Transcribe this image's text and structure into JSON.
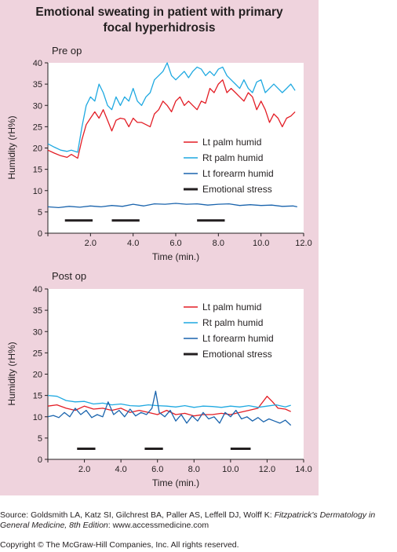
{
  "title_line1": "Emotional sweating in patient with primary",
  "title_line2": "focal hyperhidrosis",
  "source_prefix": "Source: Goldsmith LA, Katz SI, Gilchrest BA, Paller AS, Leffell DJ, Wolff K: ",
  "source_italic": "Fitzpatrick's Dermatology in General Medicine, 8th Edition",
  "source_suffix": ": www.accessmedicine.com",
  "copyright": "Copyright © The McGraw-Hill Companies, Inc. All rights reserved.",
  "colors": {
    "lt_palm": "#e31d25",
    "rt_palm": "#1fa9e1",
    "lt_forearm": "#1a64ad",
    "stress": "#231f20",
    "background": "#efd3dd"
  },
  "chart_data": [
    {
      "type": "line",
      "panel_label": "Pre op",
      "xlabel": "Time (min.)",
      "ylabel": "Humidity (rH%)",
      "xlim": [
        0,
        12
      ],
      "ylim": [
        0,
        40
      ],
      "xticks": [
        "2.0",
        "4.0",
        "6.0",
        "8.0",
        "10.0",
        "12.0"
      ],
      "yticks": [
        "0",
        "5",
        "10",
        "15",
        "20",
        "25",
        "30",
        "35",
        "40"
      ],
      "legend": [
        "Lt palm humid",
        "Rt palm humid",
        "Lt forearm humid",
        "Emotional stress"
      ],
      "legend_position": "right",
      "series": [
        {
          "name": "Lt palm humid",
          "color": "#e31d25",
          "x": [
            0,
            0.3,
            0.6,
            0.9,
            1.1,
            1.4,
            1.6,
            1.8,
            2.0,
            2.2,
            2.4,
            2.6,
            2.8,
            3.0,
            3.2,
            3.4,
            3.6,
            3.8,
            4.0,
            4.2,
            4.4,
            4.6,
            4.8,
            5.0,
            5.2,
            5.4,
            5.6,
            5.8,
            6.0,
            6.2,
            6.4,
            6.6,
            6.8,
            7.0,
            7.2,
            7.4,
            7.6,
            7.8,
            8.0,
            8.2,
            8.4,
            8.6,
            8.8,
            9.0,
            9.2,
            9.4,
            9.6,
            9.8,
            10.0,
            10.2,
            10.4,
            10.6,
            10.8,
            11.0,
            11.2,
            11.4,
            11.6
          ],
          "y": [
            19.5,
            18.8,
            18.2,
            17.8,
            18.5,
            17.6,
            22,
            25.5,
            27,
            28.5,
            27,
            29,
            26.5,
            24,
            26.5,
            27,
            26.8,
            25,
            27,
            26,
            26,
            25.5,
            25,
            28,
            29,
            31,
            30,
            28.5,
            31,
            32,
            30,
            31,
            30,
            29,
            31,
            30.5,
            34,
            33,
            35,
            36,
            33,
            34,
            33,
            32,
            31,
            33,
            32,
            29,
            31,
            29,
            26,
            28,
            27,
            25,
            27,
            27.5,
            28.5
          ]
        },
        {
          "name": "Rt palm humid",
          "color": "#1fa9e1",
          "x": [
            0,
            0.3,
            0.6,
            0.9,
            1.1,
            1.4,
            1.6,
            1.8,
            2.0,
            2.2,
            2.4,
            2.6,
            2.8,
            3.0,
            3.2,
            3.4,
            3.6,
            3.8,
            4.0,
            4.2,
            4.4,
            4.6,
            4.8,
            5.0,
            5.2,
            5.4,
            5.6,
            5.8,
            6.0,
            6.2,
            6.4,
            6.6,
            6.8,
            7.0,
            7.2,
            7.4,
            7.6,
            7.8,
            8.0,
            8.2,
            8.4,
            8.6,
            8.8,
            9.0,
            9.2,
            9.4,
            9.6,
            9.8,
            10.0,
            10.2,
            10.4,
            10.6,
            10.8,
            11.0,
            11.2,
            11.4,
            11.6
          ],
          "y": [
            21,
            20.2,
            19.5,
            19.2,
            19.5,
            19,
            25,
            30,
            32,
            31,
            35,
            33,
            30,
            29,
            32,
            30,
            32,
            31,
            34,
            31,
            30,
            32,
            33,
            36,
            37,
            38,
            40,
            37,
            36,
            37,
            38,
            36.5,
            38,
            39,
            38.5,
            37,
            38,
            37,
            38.5,
            39,
            37,
            36,
            35,
            34,
            36,
            34,
            33,
            35.5,
            36,
            33,
            34,
            35,
            34,
            33,
            34,
            35,
            33.5
          ]
        },
        {
          "name": "Lt forearm humid",
          "color": "#1a64ad",
          "x": [
            0,
            0.5,
            1.0,
            1.5,
            2.0,
            2.5,
            3.0,
            3.5,
            4.0,
            4.5,
            5.0,
            5.5,
            6.0,
            6.5,
            7.0,
            7.5,
            8.0,
            8.5,
            9.0,
            9.5,
            10.0,
            10.5,
            11.0,
            11.5,
            11.7
          ],
          "y": [
            6.2,
            6.0,
            6.3,
            6.1,
            6.4,
            6.2,
            6.5,
            6.3,
            6.8,
            6.4,
            6.9,
            6.8,
            7.0,
            6.8,
            6.9,
            6.6,
            6.8,
            6.9,
            6.5,
            6.7,
            6.5,
            6.6,
            6.3,
            6.4,
            6.2
          ]
        }
      ],
      "stress_periods": [
        [
          0.8,
          2.1
        ],
        [
          3.0,
          4.3
        ],
        [
          7.0,
          8.3
        ]
      ],
      "stress_level": 3
    },
    {
      "type": "line",
      "panel_label": "Post op",
      "xlabel": "Time (min.)",
      "ylabel": "Humidity (rH%)",
      "xlim": [
        0,
        14
      ],
      "ylim": [
        0,
        40
      ],
      "xticks": [
        "2.0",
        "4.0",
        "6.0",
        "8.0",
        "10.0",
        "12.0",
        "14.0"
      ],
      "yticks": [
        "0",
        "5",
        "10",
        "15",
        "20",
        "25",
        "30",
        "35",
        "40"
      ],
      "legend": [
        "Lt palm humid",
        "Rt palm humid",
        "Lt forearm humid",
        "Emotional stress"
      ],
      "legend_position": "right",
      "series": [
        {
          "name": "Lt palm humid",
          "color": "#e31d25",
          "x": [
            0,
            0.5,
            1.0,
            1.5,
            2.0,
            2.5,
            3.0,
            3.5,
            4.0,
            4.5,
            5.0,
            5.5,
            6.0,
            6.5,
            7.0,
            7.5,
            8.0,
            8.5,
            9.0,
            9.5,
            10.0,
            10.5,
            11.0,
            11.5,
            12.0,
            12.3,
            12.6,
            13.0,
            13.3
          ],
          "y": [
            12.5,
            12.8,
            12.0,
            11.5,
            12.5,
            11.8,
            12.0,
            11.5,
            12.0,
            11.0,
            11.5,
            11.0,
            10.5,
            11.5,
            10.5,
            10.8,
            10.2,
            10.5,
            10.5,
            10.8,
            10.5,
            11.0,
            11.5,
            12.0,
            14.8,
            13.5,
            12.0,
            11.8,
            11.2
          ]
        },
        {
          "name": "Rt palm humid",
          "color": "#1fa9e1",
          "x": [
            0,
            0.5,
            1.0,
            1.5,
            2.0,
            2.5,
            3.0,
            3.5,
            4.0,
            4.5,
            5.0,
            5.5,
            6.0,
            6.5,
            7.0,
            7.5,
            8.0,
            8.5,
            9.0,
            9.5,
            10.0,
            10.5,
            11.0,
            11.5,
            12.0,
            12.5,
            13.0,
            13.3
          ],
          "y": [
            15.0,
            14.8,
            13.8,
            13.5,
            13.6,
            13.0,
            13.2,
            12.8,
            13.0,
            12.6,
            12.5,
            12.8,
            12.6,
            12.5,
            12.3,
            12.6,
            12.2,
            12.5,
            12.4,
            12.2,
            12.5,
            12.3,
            12.6,
            12.2,
            12.5,
            12.8,
            12.3,
            12.7
          ]
        },
        {
          "name": "Lt forearm humid",
          "color": "#1a64ad",
          "x": [
            0,
            0.3,
            0.6,
            0.9,
            1.2,
            1.5,
            1.8,
            2.1,
            2.4,
            2.7,
            3.0,
            3.3,
            3.6,
            3.9,
            4.2,
            4.5,
            4.8,
            5.1,
            5.4,
            5.7,
            5.9,
            6.1,
            6.4,
            6.7,
            7.0,
            7.3,
            7.6,
            7.9,
            8.2,
            8.5,
            8.8,
            9.1,
            9.4,
            9.7,
            10.0,
            10.3,
            10.6,
            10.9,
            11.2,
            11.5,
            11.8,
            12.1,
            12.4,
            12.7,
            13.0,
            13.3
          ],
          "y": [
            10.0,
            10.3,
            9.8,
            11.0,
            10.0,
            12.0,
            10.5,
            11.5,
            9.8,
            10.5,
            10.0,
            13.5,
            10.5,
            11.5,
            10.0,
            11.8,
            10.2,
            11.0,
            10.5,
            12.0,
            16.0,
            11.0,
            10.0,
            11.5,
            9.0,
            10.5,
            8.5,
            10.2,
            9.0,
            11.0,
            9.5,
            10.0,
            8.5,
            11.0,
            10.0,
            11.5,
            9.5,
            10.0,
            9.0,
            9.8,
            8.8,
            9.5,
            9.0,
            8.5,
            9.2,
            8.0
          ]
        }
      ],
      "stress_periods": [
        [
          1.6,
          2.6
        ],
        [
          5.3,
          6.3
        ],
        [
          10.0,
          11.1
        ]
      ],
      "stress_level": 2.5
    }
  ]
}
